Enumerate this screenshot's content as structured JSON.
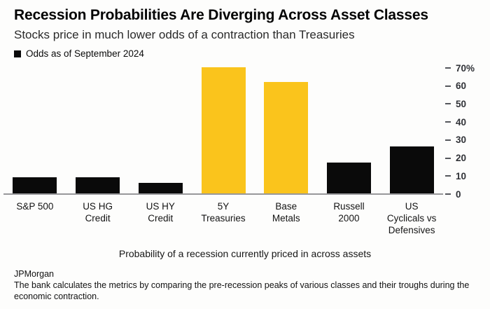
{
  "chart_data": {
    "type": "bar",
    "title": "Recession Probabilities Are Diverging Across Asset Classes",
    "subtitle": "Stocks price in much lower odds of a contraction than Treasuries",
    "legend": [
      "Odds as of September 2024"
    ],
    "legend_position": "top-left",
    "categories": [
      "S&P 500",
      "US HG Credit",
      "US HY Credit",
      "5Y Treasuries",
      "Base Metals",
      "Russell 2000",
      "US Cyclicals vs Defensives"
    ],
    "values": [
      9,
      9,
      6,
      70,
      62,
      17,
      26
    ],
    "unit": "%",
    "bar_colors": [
      "#0a0a0a",
      "#0a0a0a",
      "#0a0a0a",
      "#fac41c",
      "#fac41c",
      "#0a0a0a",
      "#0a0a0a"
    ],
    "xtick_lines": [
      [
        "S&P 500"
      ],
      [
        "US HG",
        "Credit"
      ],
      [
        "US HY",
        "Credit"
      ],
      [
        "5Y",
        "Treasuries"
      ],
      [
        "Base",
        "Metals"
      ],
      [
        "Russell",
        "2000"
      ],
      [
        "US",
        "Cyclicals vs",
        "Defensives"
      ]
    ],
    "yticks": [
      {
        "value": 0,
        "label": "0"
      },
      {
        "value": 10,
        "label": "10"
      },
      {
        "value": 20,
        "label": "20"
      },
      {
        "value": 30,
        "label": "30"
      },
      {
        "value": 40,
        "label": "40"
      },
      {
        "value": 50,
        "label": "50"
      },
      {
        "value": 60,
        "label": "60"
      },
      {
        "value": 70,
        "label": "70%"
      }
    ],
    "ylim": [
      0,
      70
    ],
    "grid": false,
    "y_axis_side": "right",
    "xlabel": "Probability of a recession currently priced in across assets",
    "ylabel": ""
  },
  "footer": {
    "source": "JPMorgan",
    "note": "The bank calculates the metrics by comparing the pre-recession peaks of various classes and their troughs during the economic contraction."
  },
  "colors": {
    "bar_black": "#0a0a0a",
    "bar_yellow": "#fac41c",
    "axis_line": "#98989a",
    "tick_dash": "#55575c",
    "tick_text": "#303237"
  }
}
